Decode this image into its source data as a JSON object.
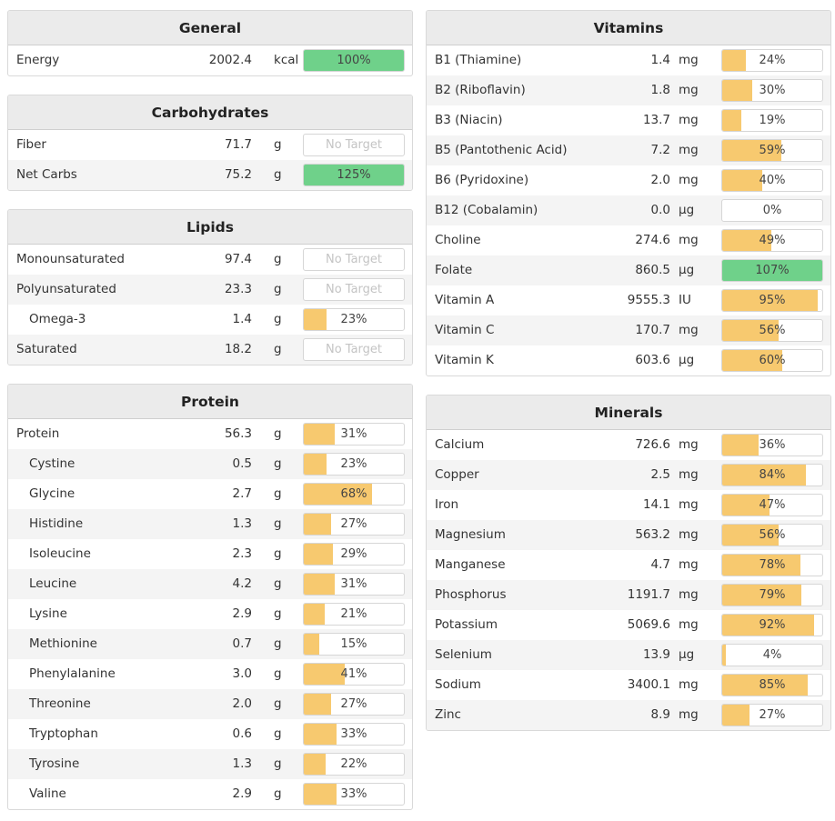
{
  "colors": {
    "bar_partial": "#f7c96f",
    "bar_complete": "#6fd18a",
    "header_bg": "#ebebeb",
    "alt_row_bg": "#f4f4f4"
  },
  "panels": [
    {
      "id": "general",
      "title": "General",
      "rows": [
        {
          "name": "Energy",
          "amount": "2002.4",
          "unit": "kcal",
          "pct_label": "100%",
          "pct": 100
        }
      ]
    },
    {
      "id": "carbohydrates",
      "title": "Carbohydrates",
      "rows": [
        {
          "name": "Fiber",
          "amount": "71.7",
          "unit": "g",
          "pct_label": "No Target",
          "pct": null
        },
        {
          "name": "Net Carbs",
          "amount": "75.2",
          "unit": "g",
          "pct_label": "125%",
          "pct": 125
        }
      ]
    },
    {
      "id": "lipids",
      "title": "Lipids",
      "rows": [
        {
          "name": "Monounsaturated",
          "amount": "97.4",
          "unit": "g",
          "pct_label": "No Target",
          "pct": null
        },
        {
          "name": "Polyunsaturated",
          "amount": "23.3",
          "unit": "g",
          "pct_label": "No Target",
          "pct": null
        },
        {
          "name": "Omega-3",
          "amount": "1.4",
          "unit": "g",
          "pct_label": "23%",
          "pct": 23,
          "indent": true
        },
        {
          "name": "Saturated",
          "amount": "18.2",
          "unit": "g",
          "pct_label": "No Target",
          "pct": null
        }
      ]
    },
    {
      "id": "protein",
      "title": "Protein",
      "rows": [
        {
          "name": "Protein",
          "amount": "56.3",
          "unit": "g",
          "pct_label": "31%",
          "pct": 31
        },
        {
          "name": "Cystine",
          "amount": "0.5",
          "unit": "g",
          "pct_label": "23%",
          "pct": 23,
          "indent": true
        },
        {
          "name": "Glycine",
          "amount": "2.7",
          "unit": "g",
          "pct_label": "68%",
          "pct": 68,
          "indent": true
        },
        {
          "name": "Histidine",
          "amount": "1.3",
          "unit": "g",
          "pct_label": "27%",
          "pct": 27,
          "indent": true
        },
        {
          "name": "Isoleucine",
          "amount": "2.3",
          "unit": "g",
          "pct_label": "29%",
          "pct": 29,
          "indent": true
        },
        {
          "name": "Leucine",
          "amount": "4.2",
          "unit": "g",
          "pct_label": "31%",
          "pct": 31,
          "indent": true
        },
        {
          "name": "Lysine",
          "amount": "2.9",
          "unit": "g",
          "pct_label": "21%",
          "pct": 21,
          "indent": true
        },
        {
          "name": "Methionine",
          "amount": "0.7",
          "unit": "g",
          "pct_label": "15%",
          "pct": 15,
          "indent": true
        },
        {
          "name": "Phenylalanine",
          "amount": "3.0",
          "unit": "g",
          "pct_label": "41%",
          "pct": 41,
          "indent": true
        },
        {
          "name": "Threonine",
          "amount": "2.0",
          "unit": "g",
          "pct_label": "27%",
          "pct": 27,
          "indent": true
        },
        {
          "name": "Tryptophan",
          "amount": "0.6",
          "unit": "g",
          "pct_label": "33%",
          "pct": 33,
          "indent": true
        },
        {
          "name": "Tyrosine",
          "amount": "1.3",
          "unit": "g",
          "pct_label": "22%",
          "pct": 22,
          "indent": true
        },
        {
          "name": "Valine",
          "amount": "2.9",
          "unit": "g",
          "pct_label": "33%",
          "pct": 33,
          "indent": true
        }
      ]
    },
    {
      "id": "vitamins",
      "title": "Vitamins",
      "rows": [
        {
          "name": "B1 (Thiamine)",
          "amount": "1.4",
          "unit": "mg",
          "pct_label": "24%",
          "pct": 24
        },
        {
          "name": "B2 (Riboflavin)",
          "amount": "1.8",
          "unit": "mg",
          "pct_label": "30%",
          "pct": 30
        },
        {
          "name": "B3 (Niacin)",
          "amount": "13.7",
          "unit": "mg",
          "pct_label": "19%",
          "pct": 19
        },
        {
          "name": "B5 (Pantothenic Acid)",
          "amount": "7.2",
          "unit": "mg",
          "pct_label": "59%",
          "pct": 59
        },
        {
          "name": "B6 (Pyridoxine)",
          "amount": "2.0",
          "unit": "mg",
          "pct_label": "40%",
          "pct": 40
        },
        {
          "name": "B12 (Cobalamin)",
          "amount": "0.0",
          "unit": "µg",
          "pct_label": "0%",
          "pct": 0
        },
        {
          "name": "Choline",
          "amount": "274.6",
          "unit": "mg",
          "pct_label": "49%",
          "pct": 49
        },
        {
          "name": "Folate",
          "amount": "860.5",
          "unit": "µg",
          "pct_label": "107%",
          "pct": 107
        },
        {
          "name": "Vitamin A",
          "amount": "9555.3",
          "unit": "IU",
          "pct_label": "95%",
          "pct": 95
        },
        {
          "name": "Vitamin C",
          "amount": "170.7",
          "unit": "mg",
          "pct_label": "56%",
          "pct": 56
        },
        {
          "name": "Vitamin K",
          "amount": "603.6",
          "unit": "µg",
          "pct_label": "60%",
          "pct": 60
        }
      ]
    },
    {
      "id": "minerals",
      "title": "Minerals",
      "rows": [
        {
          "name": "Calcium",
          "amount": "726.6",
          "unit": "mg",
          "pct_label": "36%",
          "pct": 36
        },
        {
          "name": "Copper",
          "amount": "2.5",
          "unit": "mg",
          "pct_label": "84%",
          "pct": 84
        },
        {
          "name": "Iron",
          "amount": "14.1",
          "unit": "mg",
          "pct_label": "47%",
          "pct": 47
        },
        {
          "name": "Magnesium",
          "amount": "563.2",
          "unit": "mg",
          "pct_label": "56%",
          "pct": 56
        },
        {
          "name": "Manganese",
          "amount": "4.7",
          "unit": "mg",
          "pct_label": "78%",
          "pct": 78
        },
        {
          "name": "Phosphorus",
          "amount": "1191.7",
          "unit": "mg",
          "pct_label": "79%",
          "pct": 79
        },
        {
          "name": "Potassium",
          "amount": "5069.6",
          "unit": "mg",
          "pct_label": "92%",
          "pct": 92
        },
        {
          "name": "Selenium",
          "amount": "13.9",
          "unit": "µg",
          "pct_label": "4%",
          "pct": 4
        },
        {
          "name": "Sodium",
          "amount": "3400.1",
          "unit": "mg",
          "pct_label": "85%",
          "pct": 85
        },
        {
          "name": "Zinc",
          "amount": "8.9",
          "unit": "mg",
          "pct_label": "27%",
          "pct": 27
        }
      ]
    }
  ]
}
